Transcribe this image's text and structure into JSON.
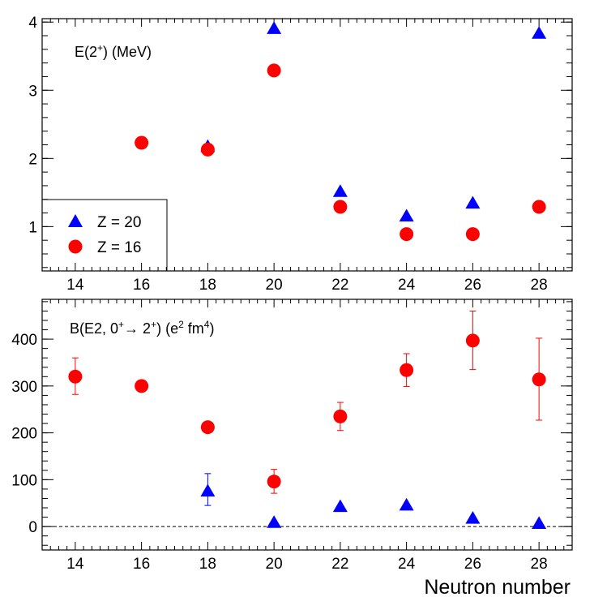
{
  "chart_data": [
    {
      "type": "scatter",
      "panel_label": {
        "prefix": "E(2",
        "sup": "+",
        "suffix": ") (MeV)"
      },
      "xlim": [
        13.0,
        29.0
      ],
      "ylim": [
        0.35,
        4.05
      ],
      "x_ticks": [
        14,
        16,
        18,
        20,
        22,
        24,
        26,
        28
      ],
      "x_tick_labels": [
        "14",
        "16",
        "18",
        "20",
        "22",
        "24",
        "26",
        "28"
      ],
      "y_ticks": [
        1,
        2,
        3,
        4
      ],
      "y_tick_labels": [
        "1",
        "2",
        "3",
        "4"
      ],
      "legend": {
        "placement": "bottom-left",
        "entries": [
          {
            "marker": "triangle",
            "color": "#0000ff",
            "label": "Z = 20"
          },
          {
            "marker": "circle",
            "color": "#ff0000",
            "label": "Z = 16"
          }
        ]
      },
      "series": [
        {
          "name": "Z = 20",
          "marker": "triangle",
          "color": "#0000ff",
          "points": [
            {
              "x": 18,
              "y": 2.17
            },
            {
              "x": 20,
              "y": 3.9
            },
            {
              "x": 22,
              "y": 1.51
            },
            {
              "x": 24,
              "y": 1.15
            },
            {
              "x": 26,
              "y": 1.34
            },
            {
              "x": 28,
              "y": 3.83
            }
          ]
        },
        {
          "name": "Z = 16",
          "marker": "circle",
          "color": "#ff0000",
          "points": [
            {
              "x": 16,
              "y": 2.23
            },
            {
              "x": 18,
              "y": 2.13
            },
            {
              "x": 20,
              "y": 3.29
            },
            {
              "x": 22,
              "y": 1.29
            },
            {
              "x": 24,
              "y": 0.89
            },
            {
              "x": 26,
              "y": 0.89
            },
            {
              "x": 28,
              "y": 1.29
            }
          ]
        }
      ]
    },
    {
      "type": "scatter",
      "panel_label": {
        "prefix": "B(E2, 0",
        "sup1": "+",
        "arrow": "→",
        "mid": " 2",
        "sup2": "+",
        "mid2": ") (e",
        "sup3": "2",
        "mid3": " fm",
        "sup4": "4",
        "suffix": ")"
      },
      "xlim": [
        13.0,
        29.0
      ],
      "ylim": [
        -50,
        485
      ],
      "x_ticks": [
        14,
        16,
        18,
        20,
        22,
        24,
        26,
        28
      ],
      "x_tick_labels": [
        "14",
        "16",
        "18",
        "20",
        "22",
        "24",
        "26",
        "28"
      ],
      "y_ticks": [
        0,
        100,
        200,
        300,
        400
      ],
      "y_tick_labels": [
        "0",
        "100",
        "200",
        "300",
        "400"
      ],
      "xlabel": "Neutron number",
      "reference_line": {
        "y": 0,
        "style": "dashed"
      },
      "series": [
        {
          "name": "Z = 20",
          "marker": "triangle",
          "color": "#0000ff",
          "points": [
            {
              "x": 18,
              "y": 75,
              "err_low": 30,
              "err_high": 38
            },
            {
              "x": 20,
              "y": 8
            },
            {
              "x": 22,
              "y": 42
            },
            {
              "x": 24,
              "y": 45
            },
            {
              "x": 26,
              "y": 17
            },
            {
              "x": 28,
              "y": 6
            }
          ]
        },
        {
          "name": "Z = 16",
          "marker": "circle",
          "color": "#ff0000",
          "points": [
            {
              "x": 14,
              "y": 320,
              "err_low": 38,
              "err_high": 40
            },
            {
              "x": 16,
              "y": 300
            },
            {
              "x": 18,
              "y": 212
            },
            {
              "x": 20,
              "y": 96,
              "err_low": 25,
              "err_high": 26
            },
            {
              "x": 22,
              "y": 235,
              "err_low": 30,
              "err_high": 30
            },
            {
              "x": 24,
              "y": 334,
              "err_low": 35,
              "err_high": 35
            },
            {
              "x": 26,
              "y": 397,
              "err_low": 62,
              "err_high": 63
            },
            {
              "x": 28,
              "y": 314,
              "err_low": 87,
              "err_high": 88
            }
          ]
        }
      ]
    }
  ]
}
